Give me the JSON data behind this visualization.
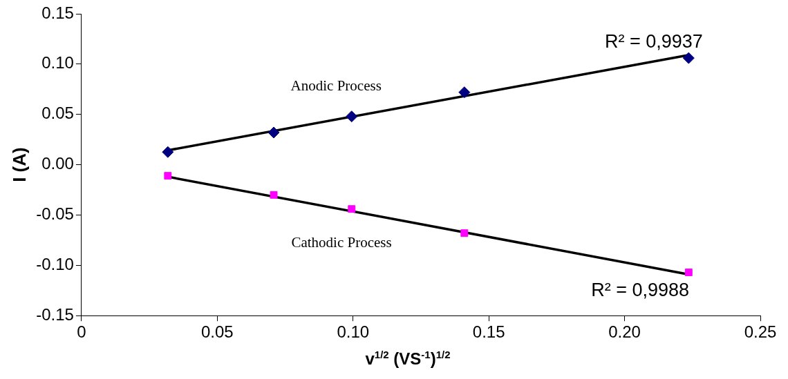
{
  "chart_data": {
    "type": "scatter",
    "xlabel": "v$^{1/2}$ (VS$^{-1}$)$^{1/2}$",
    "ylabel": "I (A)",
    "xlim": [
      0,
      0.25
    ],
    "xticks": [
      0,
      0.05,
      {
        "value": 0.1,
        "label": "0.10"
      },
      0.15,
      {
        "value": 0.2,
        "label": "0.20"
      },
      0.25
    ],
    "ylim": [
      -0.15,
      0.15
    ],
    "yticks": [
      {
        "value": -0.15,
        "label": "-0.15"
      },
      {
        "value": -0.1,
        "label": "-0.10"
      },
      -0.05,
      {
        "value": 0,
        "label": "0.00"
      },
      0.05,
      {
        "value": 0.1,
        "label": "0.10"
      },
      0.15
    ],
    "grid": false,
    "legend": false,
    "series": [
      {
        "marker": "diamond",
        "color": "#000080",
        "x": [
          0.0318,
          0.0708,
          0.0995,
          0.141,
          0.2236
        ],
        "values": [
          0.0126,
          0.032,
          0.048,
          0.072,
          0.106
        ]
      },
      {
        "marker": "square",
        "color": "#ff00ff",
        "x": [
          0.0318,
          0.0708,
          0.0995,
          0.141,
          0.2236
        ],
        "values": [
          -0.011,
          -0.03,
          -0.044,
          -0.068,
          -0.107
        ]
      },
      {
        "type": "line",
        "marker": "none",
        "color": "#000000",
        "x": [
          0.0318,
          0.2236
        ],
        "values": [
          0.0143,
          0.109
        ]
      },
      {
        "type": "line",
        "marker": "none",
        "color": "#000000",
        "x": [
          0.0318,
          0.2236
        ],
        "values": [
          -0.012,
          -0.109
        ]
      }
    ],
    "annotations": [
      "Anodic Process",
      "Cathodic Process",
      "R² = 0,9937",
      "R² = 0,9988"
    ]
  }
}
